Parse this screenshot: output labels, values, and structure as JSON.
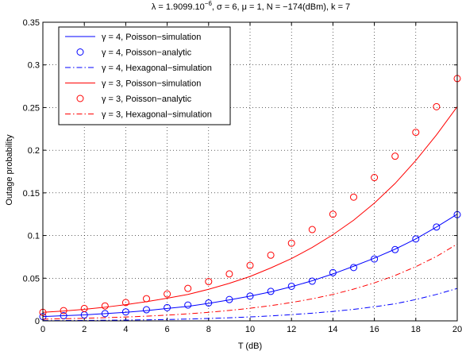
{
  "chart_data": {
    "type": "line",
    "title": {
      "part1": "λ = 1.9099.10",
      "sup": "−6",
      "part2": ", σ = 6, μ = 1, N = −174(dBm), k = 7"
    },
    "xlabel": "T (dB)",
    "ylabel": "Outage probability",
    "xlim": [
      0,
      20
    ],
    "ylim": [
      0,
      0.35
    ],
    "grid": true,
    "legend_position": "top-left",
    "x_ticks": [
      0,
      2,
      4,
      6,
      8,
      10,
      12,
      14,
      16,
      18,
      20
    ],
    "x_tick_labels": [
      "0",
      "2",
      "4",
      "6",
      "8",
      "10",
      "12",
      "14",
      "16",
      "18",
      "20"
    ],
    "y_ticks": [
      0,
      0.05,
      0.1,
      0.15,
      0.2,
      0.25,
      0.3,
      0.35
    ],
    "y_tick_labels": [
      "0",
      "0.05",
      "0.1",
      "0.15",
      "0.2",
      "0.25",
      "0.3",
      "0.35"
    ],
    "x": [
      0,
      1,
      2,
      3,
      4,
      5,
      6,
      7,
      8,
      9,
      10,
      11,
      12,
      13,
      14,
      15,
      16,
      17,
      18,
      19,
      20
    ],
    "series": [
      {
        "name": "γ = 4, Poisson−simulation",
        "color": "#0000ff",
        "style": "solid",
        "marker": "none",
        "values": [
          0.005,
          0.006,
          0.007,
          0.0085,
          0.01,
          0.012,
          0.0145,
          0.017,
          0.0205,
          0.0245,
          0.029,
          0.034,
          0.04,
          0.047,
          0.055,
          0.064,
          0.0735,
          0.084,
          0.096,
          0.11,
          0.125
        ]
      },
      {
        "name": "γ = 4, Poisson−analytic",
        "color": "#0000ff",
        "style": "none",
        "marker": "circle",
        "values": [
          0.005,
          0.006,
          0.007,
          0.0085,
          0.0105,
          0.013,
          0.0155,
          0.0185,
          0.021,
          0.025,
          0.029,
          0.0345,
          0.0405,
          0.0465,
          0.0565,
          0.0625,
          0.0725,
          0.0835,
          0.096,
          0.11,
          0.1245
        ]
      },
      {
        "name": "γ = 4, Hexagonal−simulation",
        "color": "#0000ff",
        "style": "dashdot",
        "marker": "none",
        "values": [
          0.0003,
          0.0004,
          0.0005,
          0.0007,
          0.0009,
          0.0012,
          0.0016,
          0.0021,
          0.0028,
          0.0036,
          0.0046,
          0.0058,
          0.0073,
          0.009,
          0.011,
          0.0135,
          0.0165,
          0.02,
          0.025,
          0.031,
          0.038
        ]
      },
      {
        "name": "γ = 3, Poisson−simulation",
        "color": "#ff0000",
        "style": "solid",
        "marker": "none",
        "values": [
          0.01,
          0.0115,
          0.0135,
          0.016,
          0.019,
          0.0225,
          0.0265,
          0.031,
          0.037,
          0.044,
          0.052,
          0.062,
          0.073,
          0.086,
          0.101,
          0.118,
          0.138,
          0.161,
          0.188,
          0.218,
          0.251
        ]
      },
      {
        "name": "γ = 3, Poisson−analytic",
        "color": "#ff0000",
        "style": "none",
        "marker": "circle",
        "values": [
          0.01,
          0.012,
          0.0145,
          0.0175,
          0.0215,
          0.026,
          0.0315,
          0.038,
          0.046,
          0.055,
          0.065,
          0.077,
          0.091,
          0.107,
          0.125,
          0.145,
          0.168,
          0.193,
          0.221,
          0.251,
          0.284
        ]
      },
      {
        "name": "γ = 3, Hexagonal−simulation",
        "color": "#ff0000",
        "style": "dashdot",
        "marker": "none",
        "values": [
          0.002,
          0.0025,
          0.003,
          0.0037,
          0.0045,
          0.0055,
          0.0067,
          0.0082,
          0.01,
          0.0122,
          0.0148,
          0.0178,
          0.0215,
          0.0258,
          0.031,
          0.0372,
          0.0445,
          0.0532,
          0.0635,
          0.0755,
          0.09
        ]
      }
    ]
  }
}
